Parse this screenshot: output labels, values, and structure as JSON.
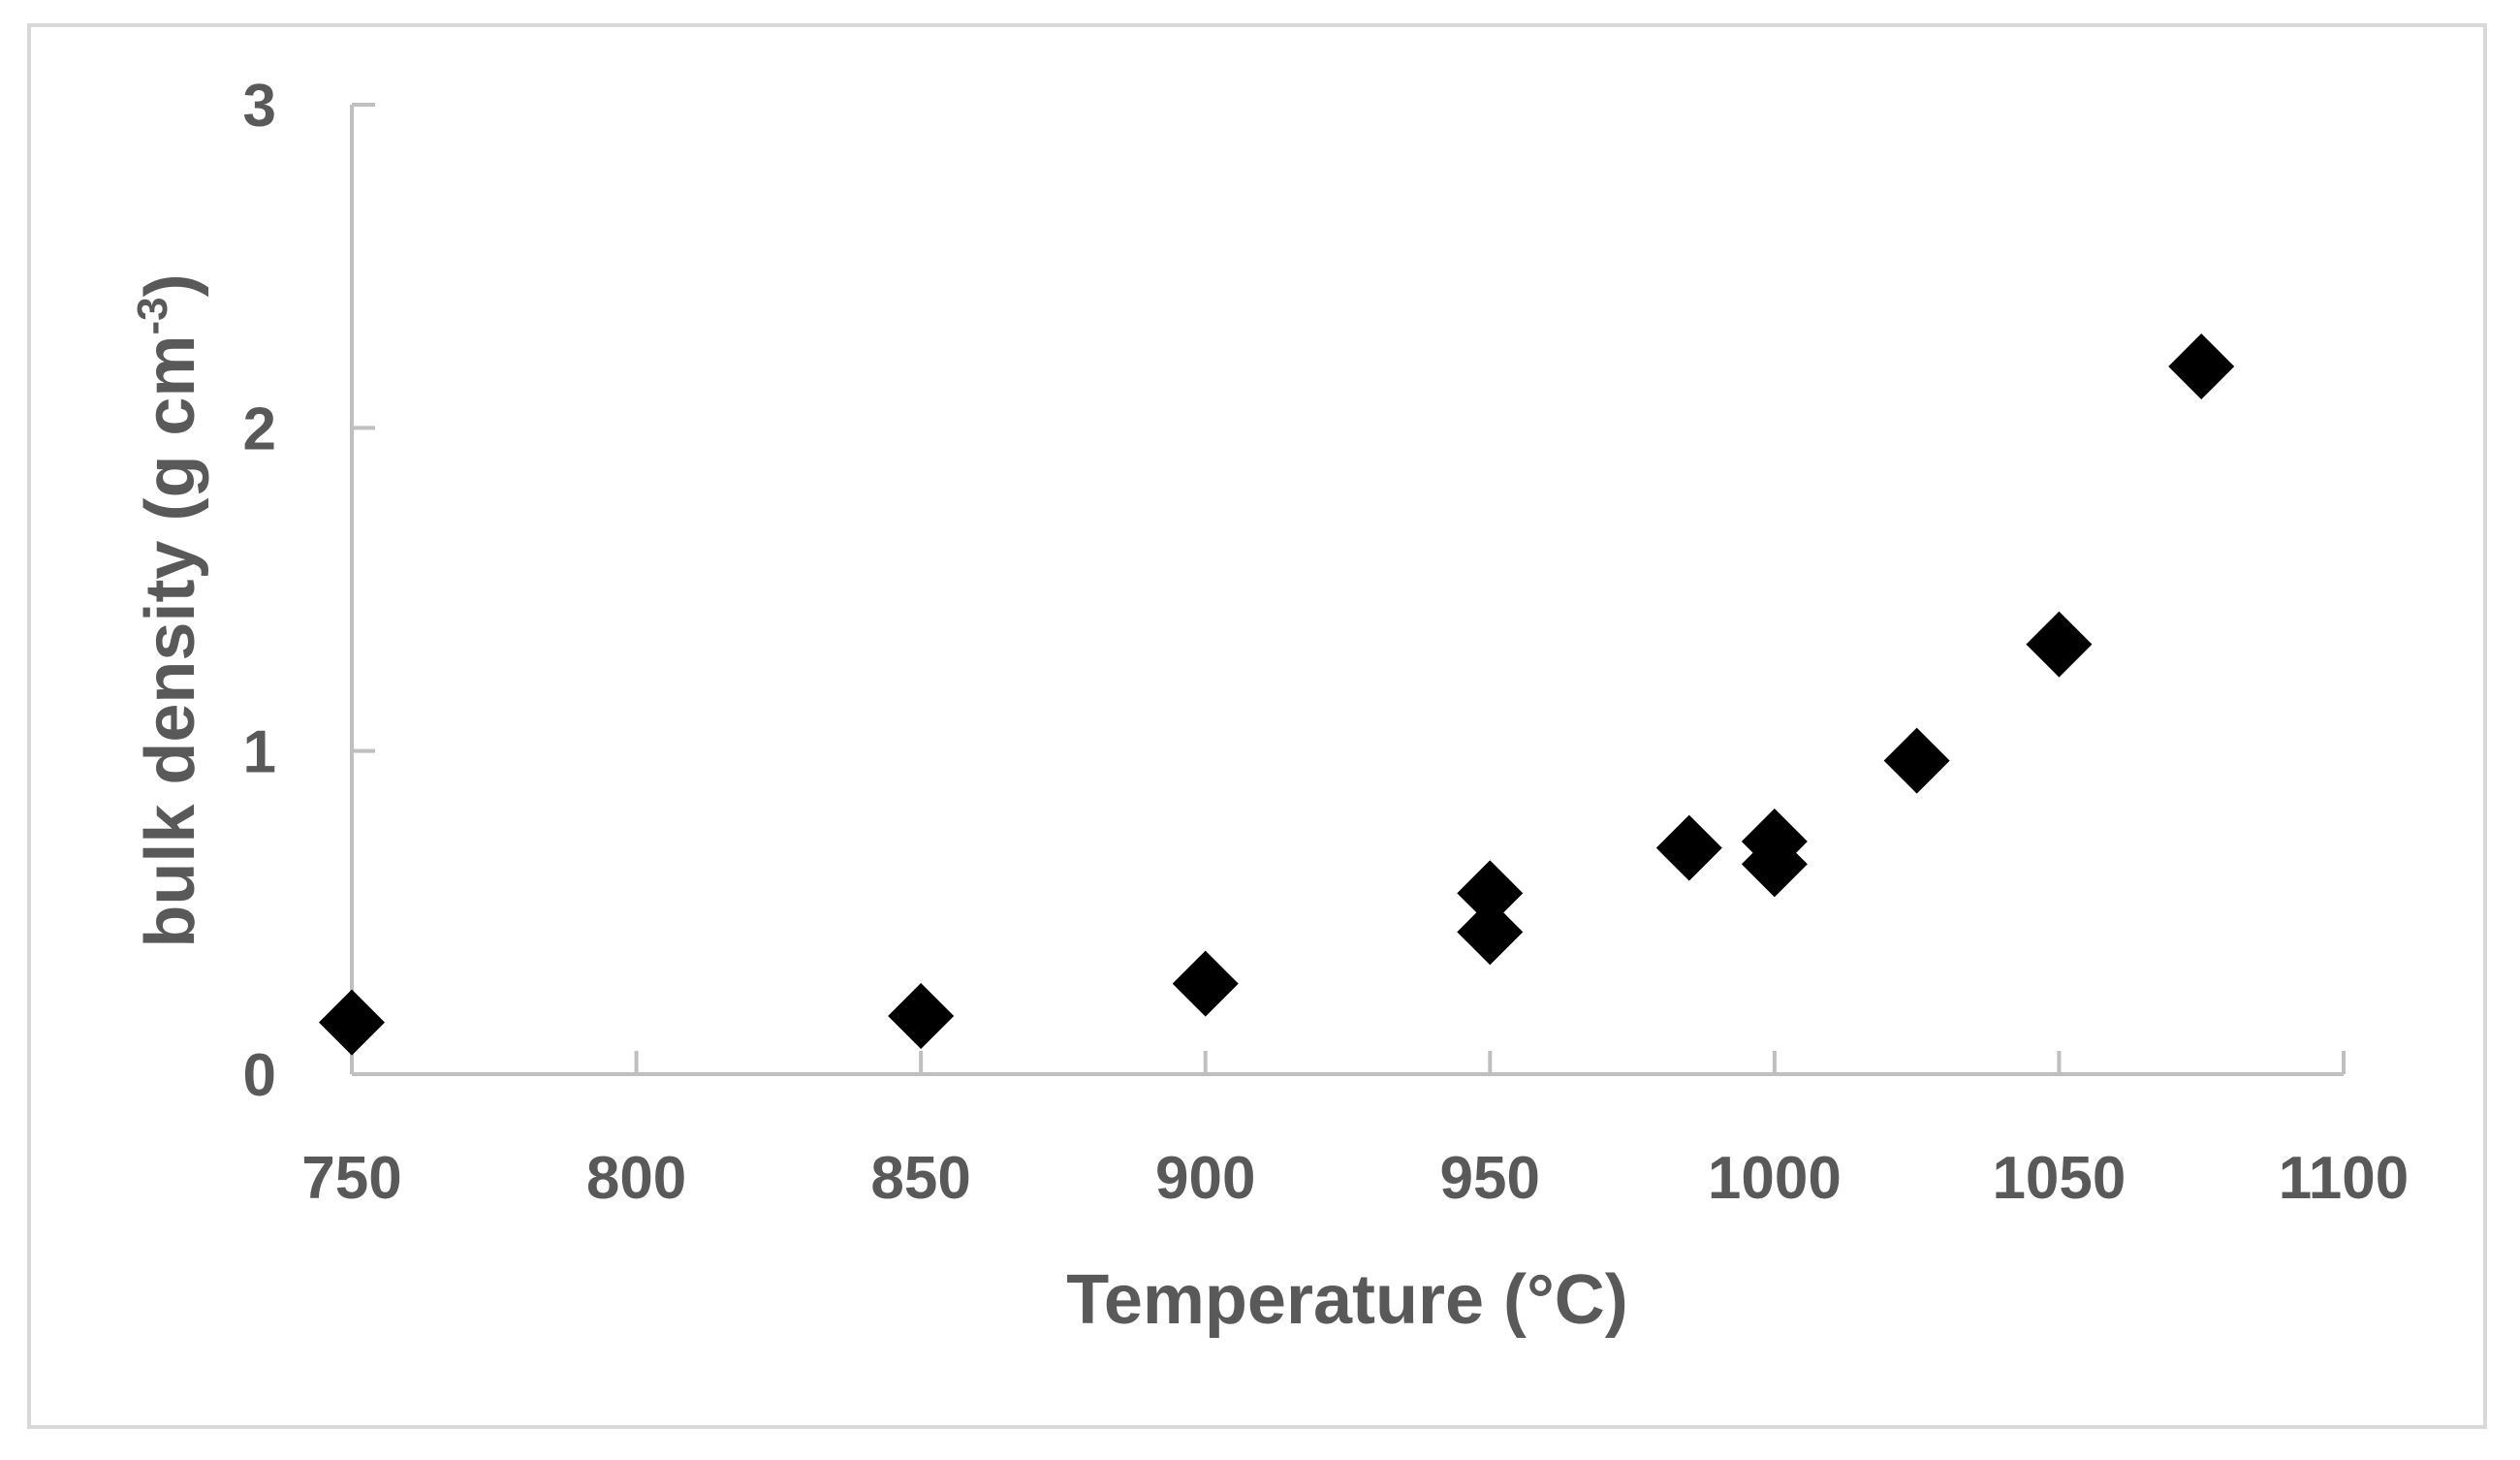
{
  "chart_data": {
    "type": "scatter",
    "title": "",
    "xlabel": "Temperature  (°C)",
    "ylabel_main": "bulk density (g cm",
    "ylabel_sup": "-3",
    "ylabel_close": ")",
    "xlim": [
      750,
      1100
    ],
    "ylim": [
      0,
      3
    ],
    "xticks": [
      750,
      800,
      850,
      900,
      950,
      1000,
      1050,
      1100
    ],
    "yticks": [
      0,
      1,
      2,
      3
    ],
    "grid": false,
    "legend": "none",
    "marker": "diamond",
    "marker_color": "#000000",
    "axis_color": "#bfbfbf",
    "text_color": "#595959",
    "series": [
      {
        "x": [
          750,
          850,
          900,
          950,
          950,
          985,
          1000,
          1000,
          1025,
          1050,
          1075
        ],
        "y": [
          0.16,
          0.18,
          0.28,
          0.56,
          0.44,
          0.7,
          0.72,
          0.65,
          0.97,
          1.33,
          2.19
        ]
      }
    ]
  }
}
